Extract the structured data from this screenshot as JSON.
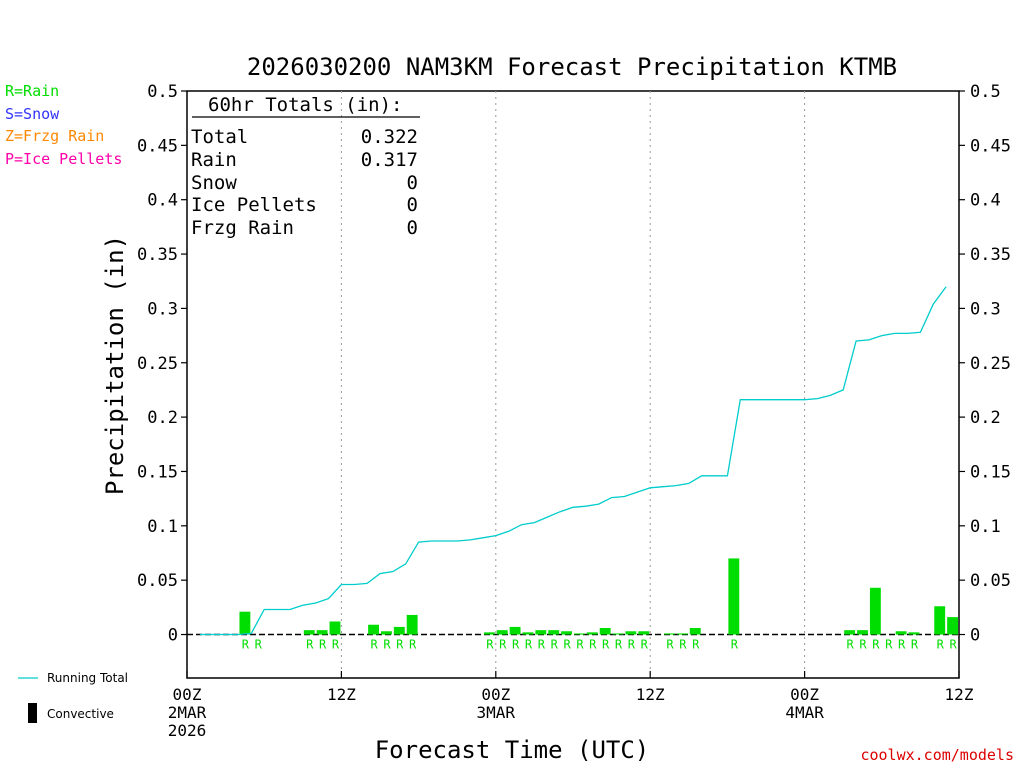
{
  "title": "2026030200 NAM3KM Forecast Precipitation KTMB",
  "chart_data": {
    "type": "bar",
    "xlabel": "Forecast Time (UTC)",
    "ylabel": "Precipitation (in)",
    "ylim": [
      -0.04,
      0.5
    ],
    "xlim_hours": [
      0,
      60
    ],
    "yticks": [
      "0",
      "0.05",
      "0.1",
      "0.15",
      "0.2",
      "0.25",
      "0.3",
      "0.35",
      "0.4",
      "0.45",
      "0.5"
    ],
    "xticks": [
      {
        "hour": 0,
        "lines": [
          "00Z",
          "2MAR",
          "2026"
        ]
      },
      {
        "hour": 12,
        "lines": [
          "12Z"
        ]
      },
      {
        "hour": 24,
        "lines": [
          "00Z",
          "3MAR"
        ]
      },
      {
        "hour": 36,
        "lines": [
          "12Z"
        ]
      },
      {
        "hour": 48,
        "lines": [
          "00Z",
          "4MAR"
        ]
      },
      {
        "hour": 60,
        "lines": [
          "12Z"
        ]
      }
    ],
    "grid": "dotted vertical at 12-hour intervals",
    "series": [
      {
        "name": "Running Total",
        "type": "line",
        "color": "#00cccc",
        "points": [
          [
            1,
            0
          ],
          [
            4,
            0
          ],
          [
            5,
            0.001
          ],
          [
            6,
            0.023
          ],
          [
            7,
            0.023
          ],
          [
            8,
            0.023
          ],
          [
            9,
            0.027
          ],
          [
            10,
            0.029
          ],
          [
            11,
            0.033
          ],
          [
            12,
            0.046
          ],
          [
            13,
            0.046
          ],
          [
            14,
            0.047
          ],
          [
            15,
            0.056
          ],
          [
            16,
            0.058
          ],
          [
            17,
            0.065
          ],
          [
            18,
            0.085
          ],
          [
            19,
            0.086
          ],
          [
            20,
            0.086
          ],
          [
            21,
            0.086
          ],
          [
            22,
            0.087
          ],
          [
            23,
            0.089
          ],
          [
            24,
            0.091
          ],
          [
            25,
            0.095
          ],
          [
            26,
            0.101
          ],
          [
            27,
            0.103
          ],
          [
            28,
            0.108
          ],
          [
            29,
            0.113
          ],
          [
            30,
            0.117
          ],
          [
            31,
            0.118
          ],
          [
            32,
            0.12
          ],
          [
            33,
            0.126
          ],
          [
            34,
            0.127
          ],
          [
            35,
            0.131
          ],
          [
            36,
            0.135
          ],
          [
            37,
            0.136
          ],
          [
            38,
            0.137
          ],
          [
            39,
            0.139
          ],
          [
            40,
            0.146
          ],
          [
            41,
            0.146
          ],
          [
            42,
            0.146
          ],
          [
            43,
            0.216
          ],
          [
            44,
            0.216
          ],
          [
            45,
            0.216
          ],
          [
            46,
            0.216
          ],
          [
            47,
            0.216
          ],
          [
            48,
            0.216
          ],
          [
            49,
            0.217
          ],
          [
            50,
            0.22
          ],
          [
            51,
            0.225
          ],
          [
            52,
            0.27
          ],
          [
            53,
            0.271
          ],
          [
            54,
            0.275
          ],
          [
            55,
            0.277
          ],
          [
            56,
            0.277
          ],
          [
            57,
            0.278
          ],
          [
            58,
            0.304
          ],
          [
            59,
            0.32
          ]
        ]
      },
      {
        "name": "Rain",
        "type": "bar",
        "color": "#00dd00",
        "bars": [
          {
            "hour": 5,
            "value": 0.021
          },
          {
            "hour": 10,
            "value": 0.004
          },
          {
            "hour": 11,
            "value": 0.004
          },
          {
            "hour": 12,
            "value": 0.012
          },
          {
            "hour": 15,
            "value": 0.009
          },
          {
            "hour": 16,
            "value": 0.003
          },
          {
            "hour": 17,
            "value": 0.007
          },
          {
            "hour": 18,
            "value": 0.018
          },
          {
            "hour": 24,
            "value": 0.002
          },
          {
            "hour": 25,
            "value": 0.004
          },
          {
            "hour": 26,
            "value": 0.007
          },
          {
            "hour": 27,
            "value": 0.002
          },
          {
            "hour": 28,
            "value": 0.004
          },
          {
            "hour": 29,
            "value": 0.004
          },
          {
            "hour": 30,
            "value": 0.003
          },
          {
            "hour": 31,
            "value": 0.001
          },
          {
            "hour": 32,
            "value": 0.002
          },
          {
            "hour": 33,
            "value": 0.006
          },
          {
            "hour": 34,
            "value": 0.001
          },
          {
            "hour": 35,
            "value": 0.003
          },
          {
            "hour": 36,
            "value": 0.003
          },
          {
            "hour": 38,
            "value": 0.001
          },
          {
            "hour": 39,
            "value": 0.001
          },
          {
            "hour": 40,
            "value": 0.006
          },
          {
            "hour": 43,
            "value": 0.07
          },
          {
            "hour": 52,
            "value": 0.004
          },
          {
            "hour": 53,
            "value": 0.004
          },
          {
            "hour": 54,
            "value": 0.043
          },
          {
            "hour": 56,
            "value": 0.003
          },
          {
            "hour": 57,
            "value": 0.002
          },
          {
            "hour": 59,
            "value": 0.026
          },
          {
            "hour": 60,
            "value": 0.016
          }
        ]
      }
    ],
    "ptype_markers": {
      "color": "#00dd00",
      "hours": [
        5,
        6,
        10,
        11,
        12,
        15,
        16,
        17,
        18,
        24,
        25,
        26,
        27,
        28,
        29,
        30,
        31,
        32,
        33,
        34,
        35,
        36,
        38,
        39,
        40,
        43,
        52,
        53,
        54,
        55,
        56,
        57,
        59,
        60
      ],
      "label": "R"
    }
  },
  "totals_box": {
    "heading": "60hr Totals (in):",
    "rows": [
      {
        "label": "Total",
        "value": "0.322"
      },
      {
        "label": "Rain",
        "value": "0.317"
      },
      {
        "label": "Snow",
        "value": "0"
      },
      {
        "label": "Ice Pellets",
        "value": "0"
      },
      {
        "label": "Frzg Rain",
        "value": "0"
      }
    ]
  },
  "ptype_legend": [
    {
      "text": "R=Rain",
      "color": "#00dd00"
    },
    {
      "text": "S=Snow",
      "color": "#3333ff"
    },
    {
      "text": "Z=Frzg Rain",
      "color": "#ff8800"
    },
    {
      "text": "P=Ice Pellets",
      "color": "#ff00aa"
    }
  ],
  "series_legend": {
    "running_total": "Running Total",
    "convective": "Convective"
  },
  "credit": "coolwx.com/models"
}
